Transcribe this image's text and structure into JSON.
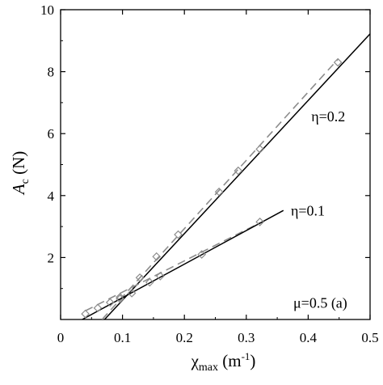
{
  "chart_data": {
    "type": "scatter",
    "xlabel": "χmax (m-1)",
    "xlabel_main": "χ",
    "xlabel_sub": "max",
    "xlabel_unit": " (m",
    "xlabel_unit_sup": "-1",
    "xlabel_close": ")",
    "ylabel": "Ac (N)",
    "ylabel_main": "A",
    "ylabel_sub": "c",
    "ylabel_unit": " (N)",
    "xlim": [
      0,
      0.5
    ],
    "ylim": [
      0,
      10
    ],
    "xticks": [
      0,
      0.1,
      0.2,
      0.3,
      0.4,
      0.5
    ],
    "xtick_labels": [
      "0",
      "0.1",
      "0.2",
      "0.3",
      "0.4",
      "0.5"
    ],
    "yticks": [
      2,
      4,
      6,
      8,
      10
    ],
    "ytick_labels": [
      "2",
      "4",
      "6",
      "8",
      "10"
    ],
    "grid": false,
    "series": [
      {
        "label": "η=0.2",
        "marker": "diamond",
        "points": [
          {
            "x": 0.096,
            "y": 0.72
          },
          {
            "x": 0.128,
            "y": 1.35
          },
          {
            "x": 0.155,
            "y": 2.03
          },
          {
            "x": 0.19,
            "y": 2.74
          },
          {
            "x": 0.256,
            "y": 4.12
          },
          {
            "x": 0.287,
            "y": 4.8
          },
          {
            "x": 0.322,
            "y": 5.5
          },
          {
            "x": 0.448,
            "y": 8.3
          }
        ],
        "fit_solid": {
          "x": [
            0.071,
            0.5
          ],
          "y": [
            0.0,
            9.22
          ]
        },
        "fit_dashed": {
          "x": [
            0.067,
            0.448
          ],
          "y": [
            0.0,
            8.4
          ]
        }
      },
      {
        "label": "η=0.1",
        "marker": "diamond",
        "points": [
          {
            "x": 0.04,
            "y": 0.18
          },
          {
            "x": 0.06,
            "y": 0.37
          },
          {
            "x": 0.08,
            "y": 0.55
          },
          {
            "x": 0.096,
            "y": 0.67
          },
          {
            "x": 0.115,
            "y": 0.85
          },
          {
            "x": 0.144,
            "y": 1.2
          },
          {
            "x": 0.161,
            "y": 1.4
          },
          {
            "x": 0.228,
            "y": 2.1
          },
          {
            "x": 0.322,
            "y": 3.15
          }
        ],
        "fit_solid": {
          "x": [
            0.035,
            0.36
          ],
          "y": [
            0.0,
            3.52
          ]
        },
        "fit_dashed": {
          "x": [
            0.04,
            0.322
          ],
          "y": [
            0.28,
            3.12
          ]
        }
      }
    ],
    "annotations": [
      {
        "text": "η=0.2",
        "x": 0.405,
        "y": 6.4
      },
      {
        "text": "η=0.1",
        "x": 0.372,
        "y": 3.35
      },
      {
        "text": "μ=0.5 (a)",
        "x": 0.376,
        "y": 0.38
      }
    ],
    "colors": {
      "solid_line": "#000000",
      "dashed_line": "#8c8c8c",
      "marker": "#8c8c8c"
    }
  }
}
